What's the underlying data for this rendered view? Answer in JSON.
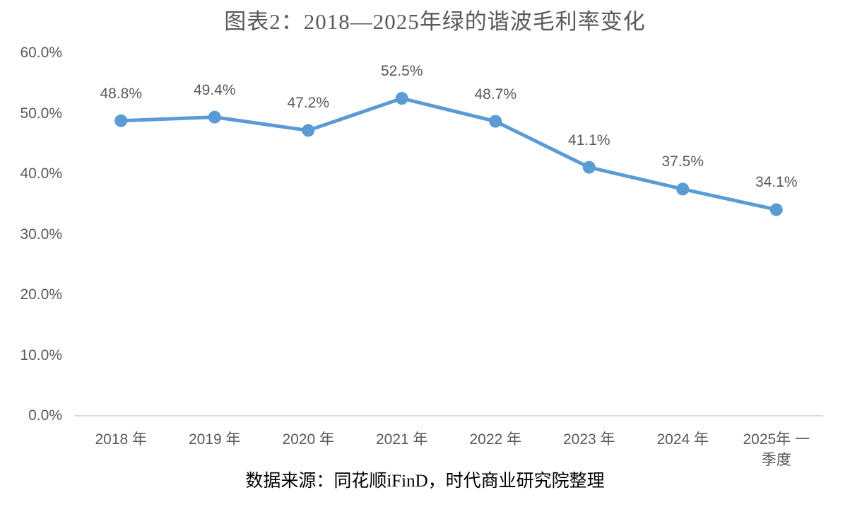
{
  "source_note": "数据来源：同花顺iFinD，时代商业研究院整理",
  "colors": {
    "line": "#5B9BD5",
    "marker": "#5B9BD5",
    "label_text": "#595959",
    "title_text": "#595959",
    "axis_line": "#D9D9D9",
    "source_text": "#000000"
  },
  "chart_data": {
    "type": "line",
    "title": "图表2：2018—2025年绿的谐波毛利率变化",
    "categories": [
      "2018 年",
      "2019 年",
      "2020 年",
      "2021 年",
      "2022 年",
      "2023 年",
      "2024 年",
      "2025年 一\n季度"
    ],
    "values": [
      48.8,
      49.4,
      47.2,
      52.5,
      48.7,
      41.1,
      37.5,
      34.1
    ],
    "data_labels": [
      "48.8%",
      "49.4%",
      "47.2%",
      "52.5%",
      "48.7%",
      "41.1%",
      "37.5%",
      "34.1%"
    ],
    "y_ticks": [
      {
        "label": "0.0%",
        "value": 0
      },
      {
        "label": "10.0%",
        "value": 10
      },
      {
        "label": "20.0%",
        "value": 20
      },
      {
        "label": "30.0%",
        "value": 30
      },
      {
        "label": "40.0%",
        "value": 40
      },
      {
        "label": "50.0%",
        "value": 50
      },
      {
        "label": "60.0%",
        "value": 60
      }
    ],
    "ylim": [
      0,
      60
    ],
    "grid": false,
    "legend": "none",
    "marker": "circle"
  }
}
